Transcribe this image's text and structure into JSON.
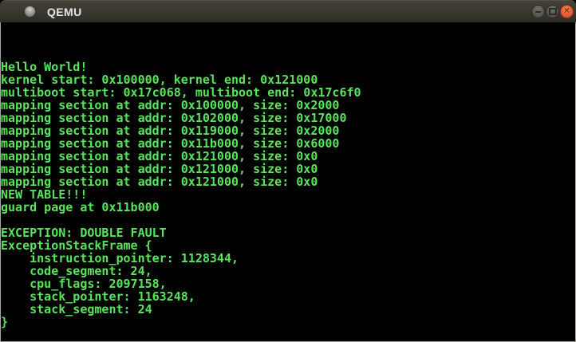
{
  "window": {
    "title": "QEMU",
    "controls": {
      "minimize_icon": "minus-bar",
      "maximize_icon": "square-outline",
      "close_glyph": "✕"
    }
  },
  "console": {
    "cols": 80,
    "rows": 25,
    "lines": [
      "",
      "",
      "",
      "Hello World!",
      "kernel start: 0x100000, kernel end: 0x121000",
      "multiboot start: 0x17c068, multiboot end: 0x17c6f0",
      "mapping section at addr: 0x100000, size: 0x2000",
      "mapping section at addr: 0x102000, size: 0x17000",
      "mapping section at addr: 0x119000, size: 0x2000",
      "mapping section at addr: 0x11b000, size: 0x6000",
      "mapping section at addr: 0x121000, size: 0x0",
      "mapping section at addr: 0x121000, size: 0x0",
      "mapping section at addr: 0x121000, size: 0x0",
      "NEW TABLE!!!",
      "guard page at 0x11b000",
      "",
      "EXCEPTION: DOUBLE FAULT",
      "ExceptionStackFrame {",
      "    instruction_pointer: 1128344,",
      "    code_segment: 24,",
      "    cpu_flags: 2097158,",
      "    stack_pointer: 1163248,",
      "    stack_segment: 24",
      "}",
      ""
    ]
  },
  "colors": {
    "console_text": "#57e65a",
    "console_bg": "#000000",
    "titlebar_bg": "#3a3731",
    "close_button": "#e25a31",
    "window_border": "#a6a49d"
  }
}
